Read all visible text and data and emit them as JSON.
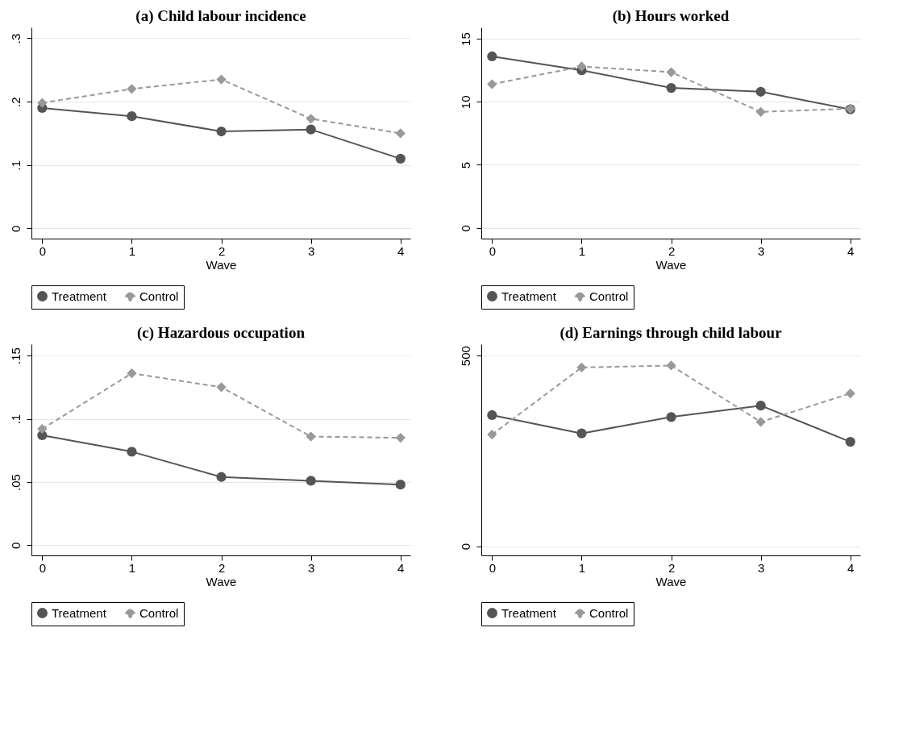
{
  "chart_data": [
    {
      "type": "line",
      "title": "(a) Child labour incidence",
      "xlabel": "Wave",
      "x": [
        0,
        1,
        2,
        3,
        4
      ],
      "xlim": [
        -0.12,
        4.11
      ],
      "xticks": [
        0,
        1,
        2,
        3,
        4
      ],
      "ylim": [
        -0.016,
        0.317
      ],
      "yticks": [
        0,
        {
          "value": 0.1,
          "label": ".1"
        },
        {
          "value": 0.2,
          "label": ".2"
        },
        {
          "value": 0.3,
          "label": ".3"
        }
      ],
      "grid": "y",
      "legend": "bottom",
      "series": [
        {
          "name": "Treatment",
          "color": "#555555",
          "marker": "circle",
          "line_style": "solid",
          "values": [
            0.19,
            0.177,
            0.153,
            0.156,
            0.11
          ]
        },
        {
          "name": "Control",
          "color": "#999999",
          "marker": "diamond",
          "line_style": "dashed",
          "values": [
            0.198,
            0.22,
            0.235,
            0.173,
            0.15
          ]
        }
      ]
    },
    {
      "type": "line",
      "title": "(b) Hours worked",
      "xlabel": "Wave",
      "x": [
        0,
        1,
        2,
        3,
        4
      ],
      "xlim": [
        -0.12,
        4.11
      ],
      "xticks": [
        0,
        1,
        2,
        3,
        4
      ],
      "ylim": [
        -0.85,
        15.9
      ],
      "yticks": [
        0,
        5,
        10,
        15
      ],
      "grid": "y",
      "legend": "bottom",
      "series": [
        {
          "name": "Treatment",
          "color": "#555555",
          "marker": "circle",
          "line_style": "solid",
          "values": [
            13.6,
            12.5,
            11.1,
            10.8,
            9.4
          ]
        },
        {
          "name": "Control",
          "color": "#999999",
          "marker": "diamond",
          "line_style": "dashed",
          "values": [
            11.4,
            12.8,
            12.35,
            9.2,
            9.45
          ]
        }
      ]
    },
    {
      "type": "line",
      "title": "(c) Hazardous occupation",
      "xlabel": "Wave",
      "x": [
        0,
        1,
        2,
        3,
        4
      ],
      "xlim": [
        -0.12,
        4.11
      ],
      "xticks": [
        0,
        1,
        2,
        3,
        4
      ],
      "ylim": [
        -0.008,
        0.159
      ],
      "yticks": [
        0,
        {
          "value": 0.05,
          "label": ".05"
        },
        {
          "value": 0.1,
          "label": ".1"
        },
        {
          "value": 0.15,
          "label": ".15"
        }
      ],
      "grid": "y",
      "legend": "bottom",
      "series": [
        {
          "name": "Treatment",
          "color": "#555555",
          "marker": "circle",
          "line_style": "solid",
          "values": [
            0.087,
            0.074,
            0.054,
            0.051,
            0.048
          ]
        },
        {
          "name": "Control",
          "color": "#999999",
          "marker": "diamond",
          "line_style": "dashed",
          "values": [
            0.092,
            0.136,
            0.125,
            0.086,
            0.085
          ]
        }
      ]
    },
    {
      "type": "line",
      "title": "(d) Earnings through child labour",
      "xlabel": "Wave",
      "x": [
        0,
        1,
        2,
        3,
        4
      ],
      "xlim": [
        -0.12,
        4.11
      ],
      "xticks": [
        0,
        1,
        2,
        3,
        4
      ],
      "ylim": [
        -24,
        530
      ],
      "yticks": [
        0,
        500
      ],
      "grid": "y",
      "legend": "bottom",
      "series": [
        {
          "name": "Treatment",
          "color": "#555555",
          "marker": "circle",
          "line_style": "solid",
          "values": [
            344,
            296,
            339,
            369,
            274
          ]
        },
        {
          "name": "Control",
          "color": "#999999",
          "marker": "diamond",
          "line_style": "dashed",
          "values": [
            293,
            469,
            474,
            326,
            401
          ]
        }
      ]
    }
  ]
}
